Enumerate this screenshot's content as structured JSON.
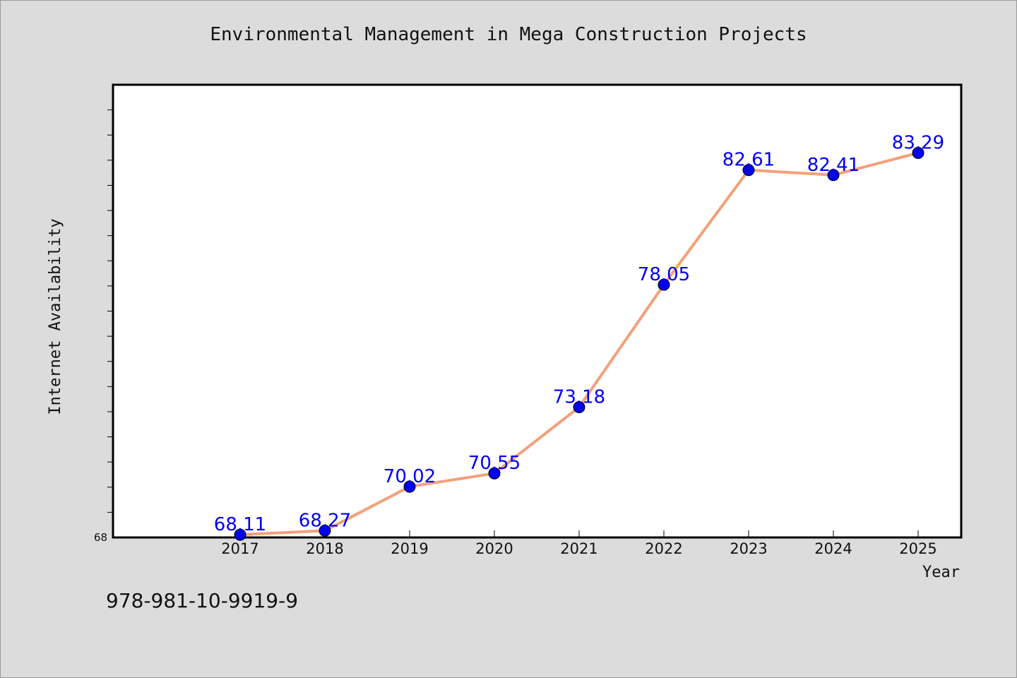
{
  "chart_data": {
    "type": "line",
    "title": "Environmental Management in Mega Construction Projects",
    "xlabel": "Year",
    "ylabel": "Internet Availability",
    "categories": [
      "2017",
      "2018",
      "2019",
      "2020",
      "2021",
      "2022",
      "2023",
      "2024",
      "2025"
    ],
    "series": [
      {
        "values": [
          68.11,
          68.27,
          70.02,
          70.55,
          73.18,
          78.05,
          82.61,
          82.41,
          83.29
        ],
        "data_labels": [
          "68.11",
          "68.27",
          "70.02",
          "70.55",
          "73.18",
          "78.05",
          "82.61",
          "82.41",
          "83.29"
        ]
      }
    ],
    "y_tick_labels": [
      "68"
    ],
    "ylim": [
      68,
      86
    ],
    "grid": false,
    "legend": "none"
  },
  "footer_text": "978-981-10-9919-9",
  "colors": {
    "background": "#dcdcdc",
    "plot_background": "#ffffff",
    "line": "#f4a07a",
    "marker": "#0000ee",
    "data_label": "#0000ee",
    "text": "#111111"
  }
}
